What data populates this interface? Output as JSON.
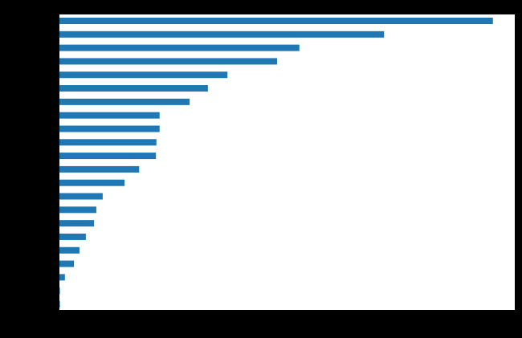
{
  "chart_data": {
    "type": "barh",
    "orientation": "horizontal",
    "categories": [
      null,
      null,
      null,
      null,
      null,
      null,
      null,
      null,
      null,
      null,
      null,
      null,
      null,
      null,
      null,
      null,
      null,
      null,
      null,
      null,
      null,
      null
    ],
    "values": [
      95.2,
      71.3,
      52.7,
      47.8,
      36.9,
      32.6,
      28.6,
      22.0,
      22.0,
      21.3,
      21.2,
      17.5,
      14.3,
      9.5,
      8.1,
      7.6,
      5.8,
      4.4,
      3.2,
      1.2,
      0.1,
      0.1
    ],
    "color": "#1f77b4",
    "xlim": [
      0,
      100
    ]
  }
}
